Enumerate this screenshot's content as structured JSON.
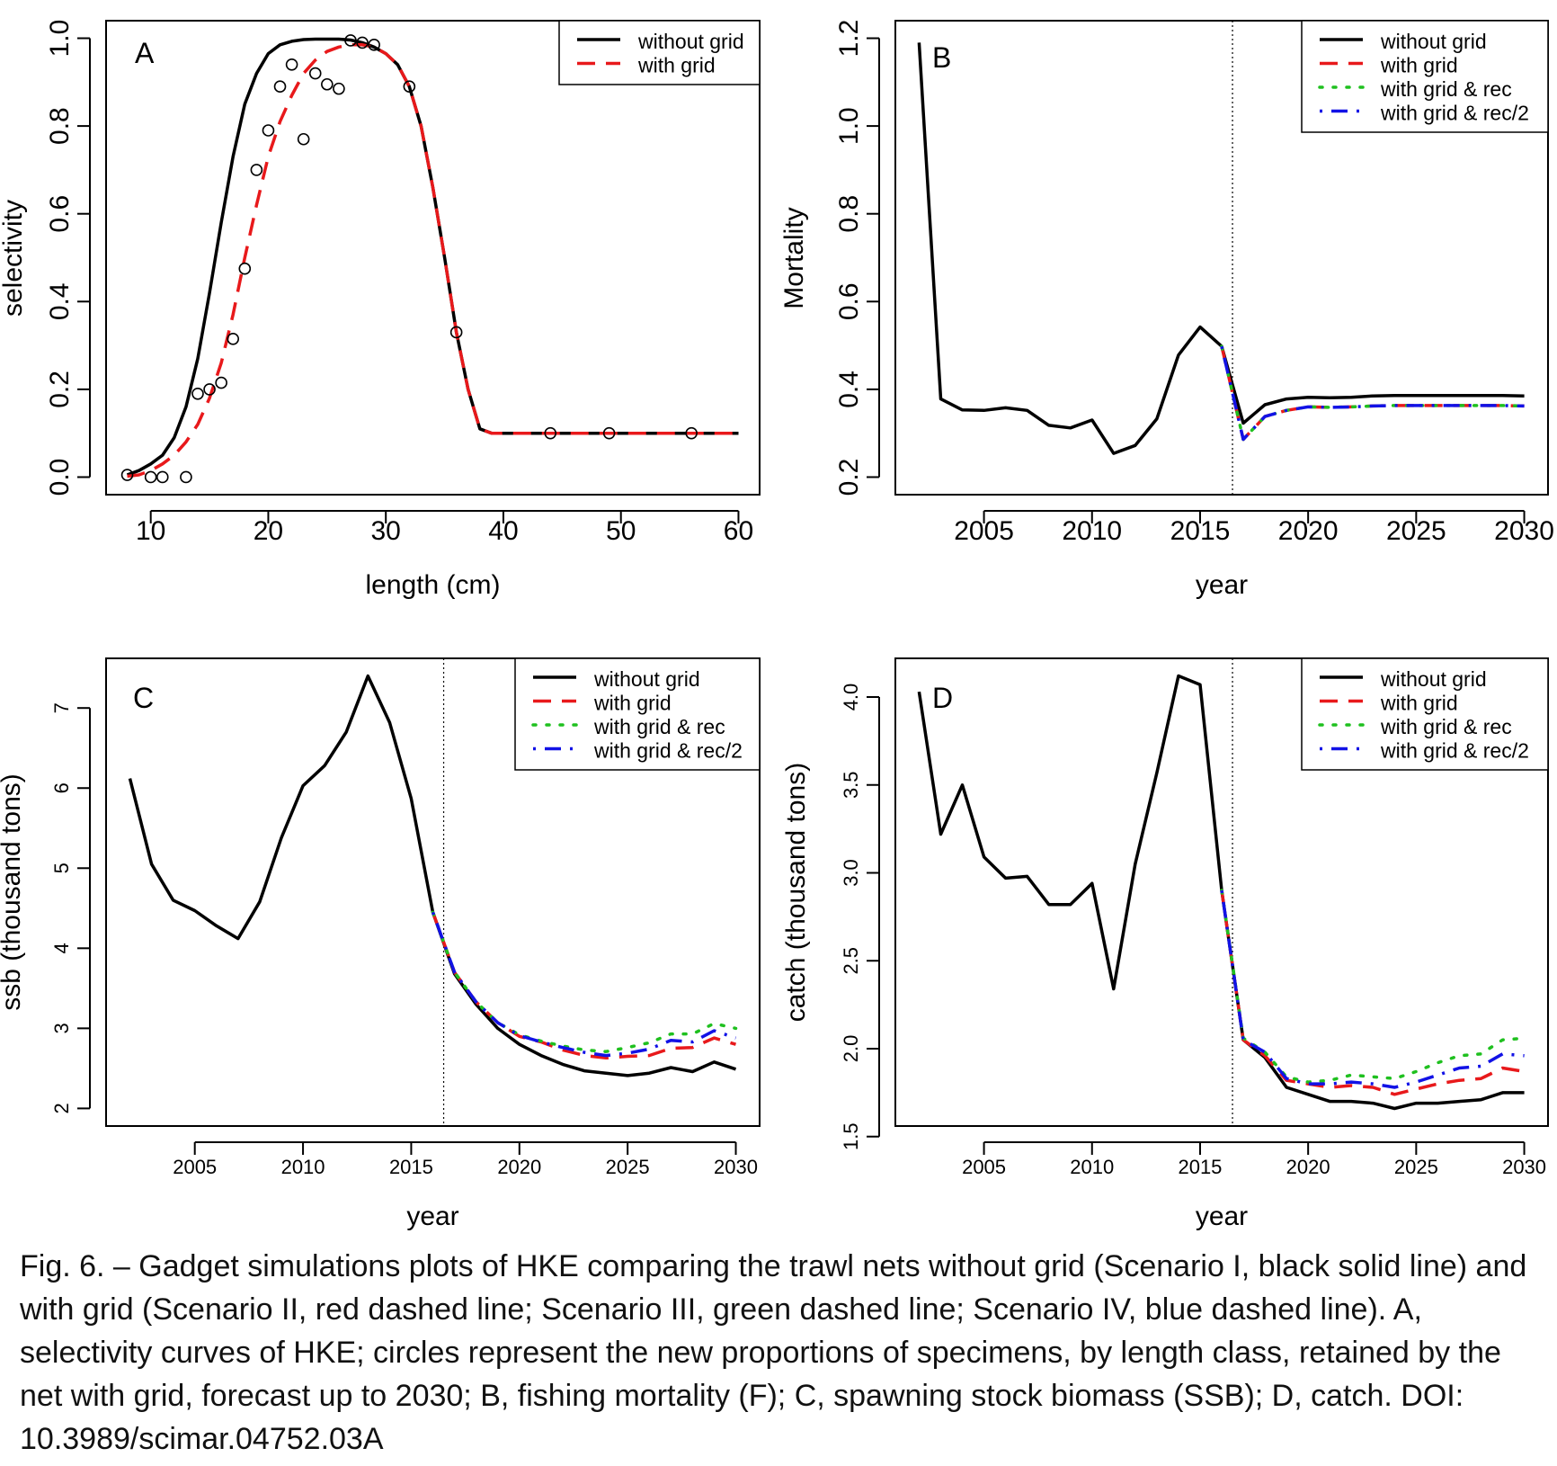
{
  "caption": "Fig. 6. – Gadget simulations plots of HKE comparing the trawl nets without grid (Scenario I, black solid line) and with grid (Scenario II, red dashed line; Scenario III, green dashed line; Scenario IV, blue dashed line). A, selectivity curves of HKE; circles represent the new proportions of specimens, by length class, retained by the net with grid, forecast up to 2030; B, fishing mortality (F); C, spawning stock biomass (SSB); D, catch. DOI: 10.3989/scimar.04752.03A",
  "colors": {
    "without_grid": "#000000",
    "with_grid": "#e8191b",
    "with_grid_rec": "#1fc01f",
    "with_grid_rec2": "#1212e6"
  },
  "chart_data": [
    {
      "id": "A",
      "type": "line",
      "panel_label": "A",
      "xlabel": "length (cm)",
      "ylabel": "selectivity",
      "xlim": [
        6.2,
        61.8
      ],
      "ylim": [
        -0.04,
        1.04
      ],
      "xticks": [
        10,
        20,
        30,
        40,
        50,
        60
      ],
      "yticks": [
        0.0,
        0.2,
        0.4,
        0.6,
        0.8,
        1.0
      ],
      "xtick_labels": [
        "10",
        "20",
        "30",
        "40",
        "50",
        "60"
      ],
      "ytick_labels": [
        "0.0",
        "0.2",
        "0.4",
        "0.6",
        "0.8",
        "1.0"
      ],
      "legend_position": "top-right",
      "series": [
        {
          "name": "without grid",
          "style": "solid",
          "color": "#000000",
          "x": [
            8,
            9,
            10,
            11,
            12,
            13,
            14,
            15,
            16,
            17,
            18,
            19,
            20,
            21,
            22,
            23,
            24,
            25,
            26,
            27,
            28,
            29,
            30,
            31,
            32,
            33,
            34,
            35,
            36,
            37,
            38,
            39,
            40,
            45,
            50,
            55,
            60
          ],
          "y": [
            0.005,
            0.015,
            0.03,
            0.05,
            0.09,
            0.16,
            0.27,
            0.42,
            0.58,
            0.73,
            0.85,
            0.92,
            0.965,
            0.985,
            0.993,
            0.997,
            0.998,
            0.998,
            0.998,
            0.996,
            0.99,
            0.98,
            0.965,
            0.94,
            0.89,
            0.8,
            0.66,
            0.5,
            0.33,
            0.2,
            0.11,
            0.1,
            0.1,
            0.1,
            0.1,
            0.1,
            0.1
          ]
        },
        {
          "name": "with grid",
          "style": "dashed",
          "color": "#e8191b",
          "x": [
            8,
            9,
            10,
            11,
            12,
            13,
            14,
            15,
            16,
            17,
            18,
            19,
            20,
            21,
            22,
            23,
            24,
            25,
            26,
            27,
            28,
            29,
            30,
            31,
            32,
            33,
            34,
            35,
            36,
            37,
            38,
            39,
            40,
            45,
            50,
            55,
            60
          ],
          "y": [
            0.002,
            0.005,
            0.015,
            0.03,
            0.05,
            0.08,
            0.12,
            0.18,
            0.26,
            0.37,
            0.5,
            0.62,
            0.73,
            0.81,
            0.87,
            0.92,
            0.95,
            0.97,
            0.98,
            0.985,
            0.985,
            0.98,
            0.965,
            0.94,
            0.89,
            0.8,
            0.66,
            0.5,
            0.33,
            0.2,
            0.11,
            0.1,
            0.1,
            0.1,
            0.1,
            0.1,
            0.1
          ]
        }
      ],
      "points": {
        "x": [
          8,
          10,
          11,
          13,
          14,
          15,
          16,
          17,
          18,
          19,
          20,
          21,
          22,
          23,
          24,
          25,
          26,
          27,
          28,
          29,
          32,
          36,
          44,
          49,
          56
        ],
        "y": [
          0.005,
          0.0,
          0.0,
          0.0,
          0.19,
          0.2,
          0.215,
          0.315,
          0.475,
          0.7,
          0.79,
          0.89,
          0.94,
          0.77,
          0.92,
          0.895,
          0.885,
          0.995,
          0.99,
          0.985,
          0.89,
          0.33,
          0.1,
          0.1,
          0.1
        ]
      }
    },
    {
      "id": "B",
      "type": "line",
      "panel_label": "B",
      "xlabel": "year",
      "ylabel": "Mortality",
      "xlim": [
        2000.9,
        2031.1
      ],
      "ylim": [
        0.16,
        1.24
      ],
      "xticks": [
        2005,
        2010,
        2015,
        2020,
        2025,
        2030
      ],
      "yticks": [
        0.2,
        0.4,
        0.6,
        0.8,
        1.0,
        1.2
      ],
      "xtick_labels": [
        "2005",
        "2010",
        "2015",
        "2020",
        "2025",
        "2030"
      ],
      "ytick_labels": [
        "0.2",
        "0.4",
        "0.6",
        "0.8",
        "1.0",
        "1.2"
      ],
      "vline": 2016.5,
      "legend_position": "top-right",
      "series": [
        {
          "name": "without grid",
          "style": "solid",
          "color": "#000000",
          "x": [
            2002,
            2003,
            2004,
            2005,
            2006,
            2007,
            2008,
            2009,
            2010,
            2011,
            2012,
            2013,
            2014,
            2015,
            2016,
            2017,
            2018,
            2019,
            2020,
            2021,
            2022,
            2023,
            2024,
            2025,
            2026,
            2027,
            2028,
            2029,
            2030
          ],
          "y": [
            1.19,
            0.378,
            0.353,
            0.352,
            0.358,
            0.352,
            0.318,
            0.312,
            0.33,
            0.254,
            0.272,
            0.333,
            0.478,
            0.542,
            0.498,
            0.323,
            0.365,
            0.378,
            0.382,
            0.381,
            0.382,
            0.385,
            0.386,
            0.386,
            0.386,
            0.386,
            0.386,
            0.386,
            0.385
          ]
        },
        {
          "name": "with grid",
          "style": "dashed",
          "color": "#e8191b",
          "x": [
            2016,
            2017,
            2018,
            2019,
            2020,
            2021,
            2022,
            2023,
            2024,
            2025,
            2026,
            2027,
            2028,
            2029,
            2030
          ],
          "y": [
            0.498,
            0.286,
            0.338,
            0.352,
            0.36,
            0.359,
            0.36,
            0.362,
            0.363,
            0.363,
            0.363,
            0.363,
            0.363,
            0.363,
            0.362
          ]
        },
        {
          "name": "with grid & rec",
          "style": "dotted",
          "color": "#1fc01f",
          "x": [
            2016,
            2017,
            2018,
            2019,
            2020,
            2021,
            2022,
            2023,
            2024,
            2025,
            2026,
            2027,
            2028,
            2029,
            2030
          ],
          "y": [
            0.498,
            0.286,
            0.338,
            0.352,
            0.36,
            0.359,
            0.36,
            0.362,
            0.363,
            0.363,
            0.363,
            0.363,
            0.363,
            0.363,
            0.362
          ]
        },
        {
          "name": "with grid & rec/2",
          "style": "dotdash",
          "color": "#1212e6",
          "x": [
            2016,
            2017,
            2018,
            2019,
            2020,
            2021,
            2022,
            2023,
            2024,
            2025,
            2026,
            2027,
            2028,
            2029,
            2030
          ],
          "y": [
            0.498,
            0.286,
            0.338,
            0.352,
            0.36,
            0.359,
            0.36,
            0.362,
            0.363,
            0.363,
            0.363,
            0.363,
            0.363,
            0.363,
            0.362
          ]
        }
      ]
    },
    {
      "id": "C",
      "type": "line",
      "panel_label": "C",
      "xlabel": "year",
      "ylabel": "ssb (thousand tons)",
      "xlim": [
        2000.9,
        2031.1
      ],
      "ylim": [
        1.78,
        7.62
      ],
      "xticks": [
        2005,
        2010,
        2015,
        2020,
        2025,
        2030
      ],
      "yticks": [
        2,
        3,
        4,
        5,
        6,
        7
      ],
      "xtick_labels": [
        "2005",
        "2010",
        "2015",
        "2020",
        "2025",
        "2030"
      ],
      "ytick_labels": [
        "2",
        "3",
        "4",
        "5",
        "6",
        "7"
      ],
      "vline": 2016.5,
      "legend_position": "top-right",
      "series": [
        {
          "name": "without grid",
          "style": "solid",
          "color": "#000000",
          "x": [
            2002,
            2003,
            2004,
            2005,
            2006,
            2007,
            2008,
            2009,
            2010,
            2011,
            2012,
            2013,
            2014,
            2015,
            2016,
            2017,
            2018,
            2019,
            2020,
            2021,
            2022,
            2023,
            2024,
            2025,
            2026,
            2027,
            2028,
            2029,
            2030
          ],
          "y": [
            6.12,
            5.05,
            4.6,
            4.47,
            4.28,
            4.12,
            4.58,
            5.38,
            6.03,
            6.28,
            6.7,
            7.4,
            6.82,
            5.87,
            4.45,
            3.68,
            3.3,
            3.0,
            2.8,
            2.66,
            2.55,
            2.47,
            2.44,
            2.41,
            2.44,
            2.51,
            2.46,
            2.58,
            2.49
          ]
        },
        {
          "name": "with grid",
          "style": "dashed",
          "color": "#e8191b",
          "x": [
            2016,
            2017,
            2018,
            2019,
            2020,
            2021,
            2022,
            2023,
            2024,
            2025,
            2026,
            2027,
            2028,
            2029,
            2030
          ],
          "y": [
            4.45,
            3.7,
            3.33,
            3.07,
            2.9,
            2.83,
            2.73,
            2.66,
            2.63,
            2.65,
            2.66,
            2.75,
            2.76,
            2.88,
            2.8
          ]
        },
        {
          "name": "with grid & rec",
          "style": "dotted",
          "color": "#1fc01f",
          "x": [
            2016,
            2017,
            2018,
            2019,
            2020,
            2021,
            2022,
            2023,
            2024,
            2025,
            2026,
            2027,
            2028,
            2029,
            2030
          ],
          "y": [
            4.45,
            3.7,
            3.33,
            3.07,
            2.92,
            2.84,
            2.78,
            2.73,
            2.71,
            2.76,
            2.82,
            2.93,
            2.93,
            3.06,
            3.0
          ]
        },
        {
          "name": "with grid & rec/2",
          "style": "dotdash",
          "color": "#1212e6",
          "x": [
            2016,
            2017,
            2018,
            2019,
            2020,
            2021,
            2022,
            2023,
            2024,
            2025,
            2026,
            2027,
            2028,
            2029,
            2030
          ],
          "y": [
            4.45,
            3.7,
            3.33,
            3.07,
            2.91,
            2.83,
            2.76,
            2.7,
            2.66,
            2.69,
            2.74,
            2.85,
            2.83,
            2.97,
            2.88
          ]
        }
      ]
    },
    {
      "id": "D",
      "type": "line",
      "panel_label": "D",
      "xlabel": "year",
      "ylabel": "catch (thousand tons)",
      "xlim": [
        2000.9,
        2031.1
      ],
      "ylim": [
        1.56,
        4.22
      ],
      "xticks": [
        2005,
        2010,
        2015,
        2020,
        2025,
        2030
      ],
      "yticks": [
        1.5,
        2.0,
        2.5,
        3.0,
        3.5,
        4.0
      ],
      "xtick_labels": [
        "2005",
        "2010",
        "2015",
        "2020",
        "2025",
        "2030"
      ],
      "ytick_labels": [
        "1.5",
        "2.0",
        "2.5",
        "3.0",
        "3.5",
        "4.0"
      ],
      "vline": 2016.5,
      "legend_position": "top-right",
      "series": [
        {
          "name": "without grid",
          "style": "solid",
          "color": "#000000",
          "x": [
            2002,
            2003,
            2004,
            2005,
            2006,
            2007,
            2008,
            2009,
            2010,
            2011,
            2012,
            2013,
            2014,
            2015,
            2016,
            2017,
            2018,
            2019,
            2020,
            2021,
            2022,
            2023,
            2024,
            2025,
            2026,
            2027,
            2028,
            2029,
            2030
          ],
          "y": [
            4.03,
            3.22,
            3.5,
            3.09,
            2.97,
            2.98,
            2.82,
            2.82,
            2.94,
            2.34,
            3.05,
            3.57,
            4.12,
            4.07,
            2.9,
            2.05,
            1.95,
            1.78,
            1.74,
            1.7,
            1.7,
            1.69,
            1.66,
            1.69,
            1.69,
            1.7,
            1.71,
            1.75,
            1.75
          ]
        },
        {
          "name": "with grid",
          "style": "dashed",
          "color": "#e8191b",
          "x": [
            2016,
            2017,
            2018,
            2019,
            2020,
            2021,
            2022,
            2023,
            2024,
            2025,
            2026,
            2027,
            2028,
            2029,
            2030
          ],
          "y": [
            2.9,
            2.05,
            1.96,
            1.82,
            1.8,
            1.78,
            1.79,
            1.78,
            1.74,
            1.77,
            1.8,
            1.82,
            1.83,
            1.89,
            1.87
          ]
        },
        {
          "name": "with grid & rec",
          "style": "dotted",
          "color": "#1fc01f",
          "x": [
            2016,
            2017,
            2018,
            2019,
            2020,
            2021,
            2022,
            2023,
            2024,
            2025,
            2026,
            2027,
            2028,
            2029,
            2030
          ],
          "y": [
            2.9,
            2.06,
            1.98,
            1.84,
            1.81,
            1.82,
            1.85,
            1.84,
            1.83,
            1.87,
            1.92,
            1.96,
            1.97,
            2.05,
            2.06
          ]
        },
        {
          "name": "with grid & rec/2",
          "style": "dotdash",
          "color": "#1212e6",
          "x": [
            2016,
            2017,
            2018,
            2019,
            2020,
            2021,
            2022,
            2023,
            2024,
            2025,
            2026,
            2027,
            2028,
            2029,
            2030
          ],
          "y": [
            2.9,
            2.05,
            1.98,
            1.83,
            1.8,
            1.8,
            1.81,
            1.8,
            1.78,
            1.81,
            1.85,
            1.89,
            1.9,
            1.97,
            1.96
          ]
        }
      ]
    }
  ]
}
